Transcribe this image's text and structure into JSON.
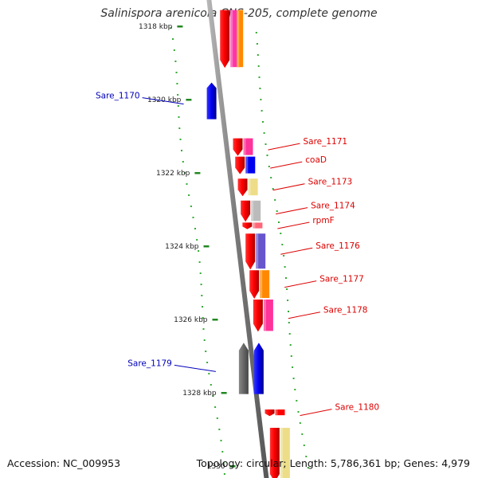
{
  "title": "Salinispora arenicola CNS-205, complete genome",
  "footer": {
    "accession": "Accession: NC_009953",
    "stats": "Topology: circular; Length: 5,786,361 bp; Genes: 4,979"
  },
  "colors": {
    "backbone": "#777777",
    "forward_label": "#dd0000",
    "reverse_label": "#0000bb",
    "tick": "#228822",
    "ring_dot": "#33aa33"
  },
  "scale": {
    "unit": "kbp",
    "ticks": [
      {
        "value": 1318,
        "label": "1318 kbp"
      },
      {
        "value": 1320,
        "label": "1320 kbp"
      },
      {
        "value": 1322,
        "label": "1322 kbp"
      },
      {
        "value": 1324,
        "label": "1324 kbp"
      },
      {
        "value": 1326,
        "label": "1326 kbp"
      },
      {
        "value": 1328,
        "label": "1328 kbp"
      },
      {
        "value": 1330,
        "label": "1330"
      }
    ]
  },
  "genes": [
    {
      "label": "",
      "strand": "forward",
      "start_kbp": 1317.6,
      "end_kbp": 1319.2,
      "cog_color": "#ff33aa"
    },
    {
      "label": "",
      "strand": "forward",
      "start_kbp": 1317.6,
      "end_kbp": 1319.2,
      "cog_color": "#ff8800"
    },
    {
      "label": "Sare_1170",
      "strand": "reverse",
      "start_kbp": 1319.6,
      "end_kbp": 1320.6,
      "cog_color": "#0000ee"
    },
    {
      "label": "Sare_1171",
      "strand": "forward",
      "start_kbp": 1321.1,
      "end_kbp": 1321.6,
      "cog_color": "#ff3399"
    },
    {
      "label": "coaD",
      "strand": "forward",
      "start_kbp": 1321.6,
      "end_kbp": 1322.1,
      "cog_color": "#0000ee"
    },
    {
      "label": "Sare_1173",
      "strand": "forward",
      "start_kbp": 1322.2,
      "end_kbp": 1322.7,
      "cog_color": "#eedd88"
    },
    {
      "label": "Sare_1174",
      "strand": "forward",
      "start_kbp": 1322.8,
      "end_kbp": 1323.4,
      "cog_color": "#bbbbbb"
    },
    {
      "label": "rpmF",
      "strand": "forward",
      "start_kbp": 1323.4,
      "end_kbp": 1323.6,
      "cog_color": "#ff6677"
    },
    {
      "label": "Sare_1176",
      "strand": "forward",
      "start_kbp": 1323.7,
      "end_kbp": 1324.7,
      "cog_color": "#6655cc"
    },
    {
      "label": "Sare_1177",
      "strand": "forward",
      "start_kbp": 1324.7,
      "end_kbp": 1325.5,
      "cog_color": "#ff8800"
    },
    {
      "label": "Sare_1178",
      "strand": "forward",
      "start_kbp": 1325.5,
      "end_kbp": 1326.4,
      "cog_color": "#ff3399"
    },
    {
      "label": "",
      "strand": "reverse",
      "start_kbp": 1326.7,
      "end_kbp": 1328.1,
      "cog_color": "#666666"
    },
    {
      "label": "Sare_1179",
      "strand": "reverse",
      "start_kbp": 1326.7,
      "end_kbp": 1328.1,
      "cog_color": "#0000ee"
    },
    {
      "label": "Sare_1180",
      "strand": "forward",
      "start_kbp": 1328.5,
      "end_kbp": 1328.7,
      "cog_color": "#ff0000"
    },
    {
      "label": "",
      "strand": "forward",
      "start_kbp": 1329.0,
      "end_kbp": 1330.5,
      "cog_color": "#eedd88"
    }
  ]
}
